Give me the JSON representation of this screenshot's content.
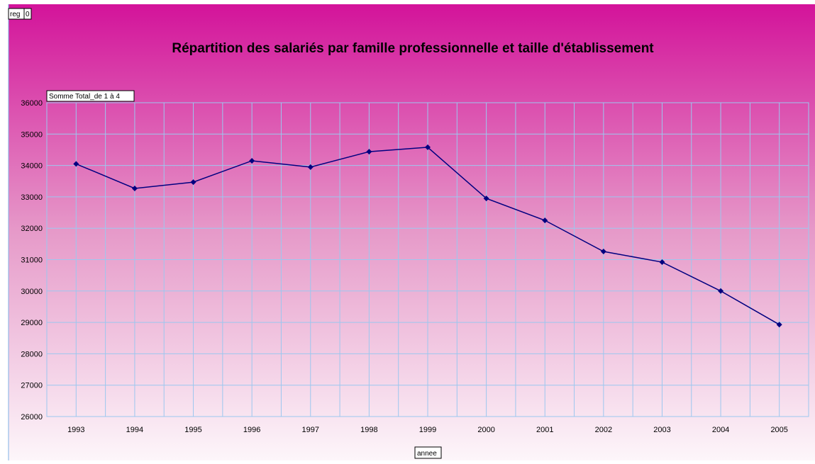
{
  "field_buttons": {
    "filter_name": "reg",
    "filter_value": "0",
    "series_field": "Somme Total_de 1 à 4",
    "category_field": "annee"
  },
  "chart_data": {
    "type": "line",
    "title": "Répartition des salariés par famille professionnelle et taille d'établissement",
    "categories": [
      "1993",
      "1994",
      "1995",
      "1996",
      "1997",
      "1998",
      "1999",
      "2000",
      "2001",
      "2002",
      "2003",
      "2004",
      "2005"
    ],
    "series": [
      {
        "name": "Somme Total_de 1 à 4",
        "color": "#000080",
        "values": [
          34050,
          33270,
          33470,
          34150,
          33950,
          34440,
          34580,
          32950,
          32250,
          31260,
          30920,
          30000,
          28930
        ]
      }
    ],
    "ylim": [
      26000,
      36000
    ],
    "yticks": [
      26000,
      27000,
      28000,
      29000,
      30000,
      31000,
      32000,
      33000,
      34000,
      35000,
      36000
    ],
    "grid": true
  }
}
